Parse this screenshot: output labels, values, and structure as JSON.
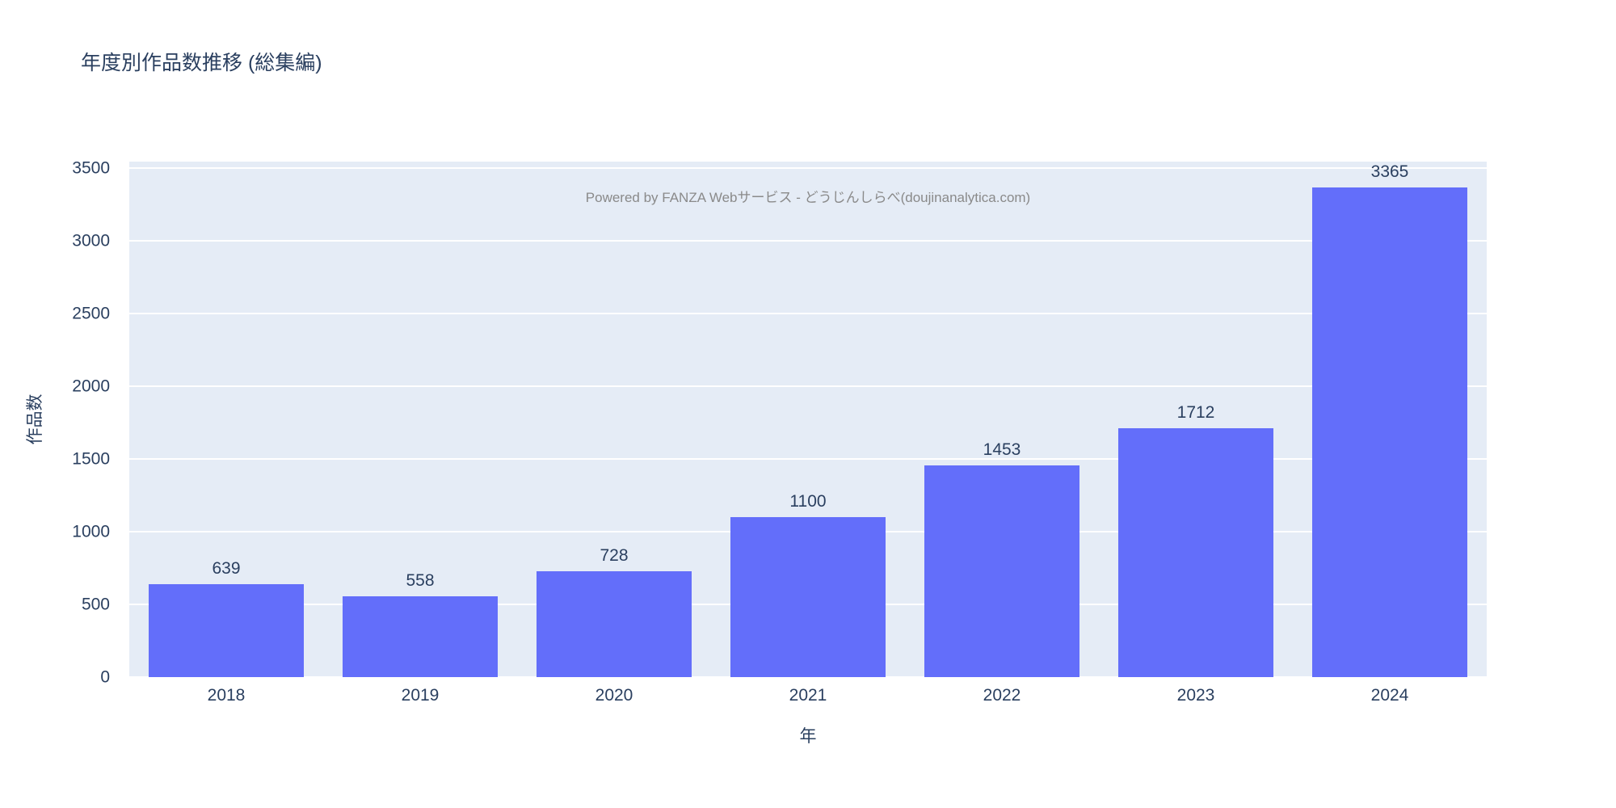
{
  "title": "年度別作品数推移 (総集編)",
  "watermark": "Powered by FANZA Webサービス - どうじんしらべ(doujinanalytica.com)",
  "colors": {
    "bar": "#636efa",
    "plot_background": "#e5ecf6",
    "gridline": "#ffffff",
    "text": "#2a3f5f",
    "watermark": "#8a8a8a"
  },
  "chart_data": {
    "type": "bar",
    "title": "年度別作品数推移 (総集編)",
    "categories": [
      "2018",
      "2019",
      "2020",
      "2021",
      "2022",
      "2023",
      "2024"
    ],
    "values": [
      639,
      558,
      728,
      1100,
      1453,
      1712,
      3365
    ],
    "xlabel": "年",
    "ylabel": "作品数",
    "ylim": [
      0,
      3544
    ],
    "yticks": [
      0,
      500,
      1000,
      1500,
      2000,
      2500,
      3000,
      3500
    ],
    "grid": true,
    "legend": false,
    "bar_labels": true,
    "annotation": "Powered by FANZA Webサービス - どうじんしらべ(doujinanalytica.com)"
  }
}
